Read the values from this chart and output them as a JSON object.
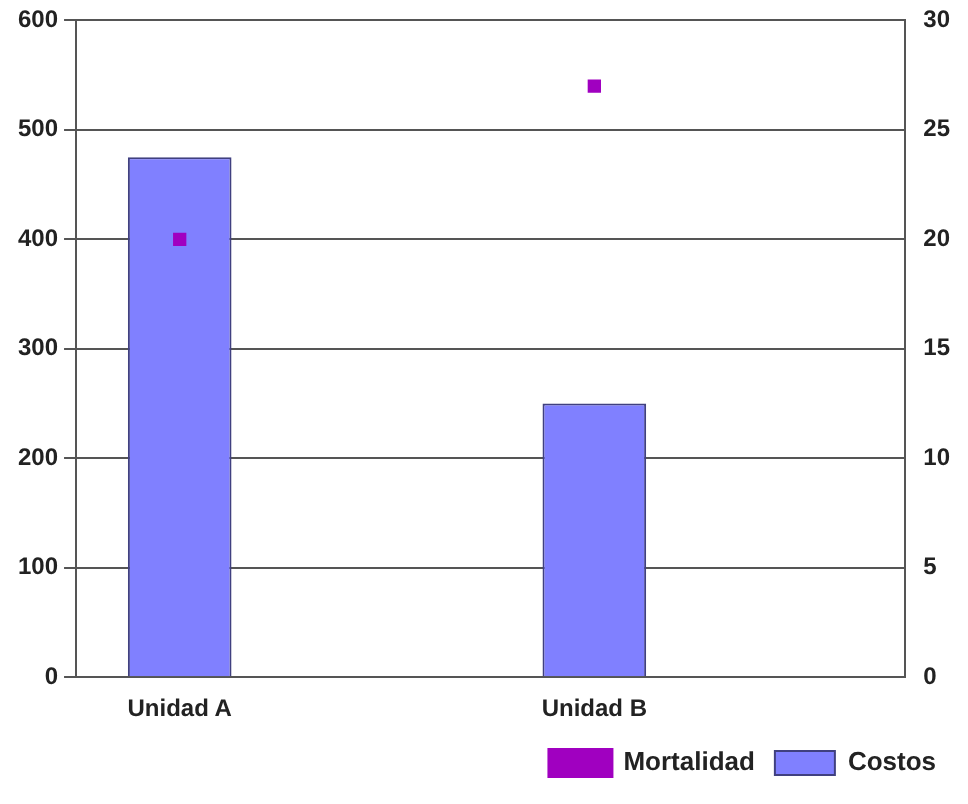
{
  "chart_data": {
    "type": "bar",
    "categories": [
      "Unidad A",
      null,
      "Unidad B",
      null
    ],
    "series": [
      {
        "name": "Costos",
        "color": "#8080ff",
        "values": [
          475,
          null,
          250,
          null
        ]
      },
      {
        "name": "Mortalidad",
        "type": "scatter",
        "axis": "y2",
        "color": "#a000c0",
        "marker": "square",
        "x": [
          "Unidad A",
          "Unidad B"
        ],
        "values": [
          20,
          27
        ]
      }
    ],
    "ylim": [
      0,
      600
    ],
    "yticks": [
      0,
      100,
      200,
      300,
      400,
      500,
      600
    ],
    "y2lim": [
      0,
      30
    ],
    "y2ticks": [
      0,
      5,
      10,
      15,
      20,
      25,
      30
    ],
    "grid": "y",
    "legend": "bottom right"
  }
}
